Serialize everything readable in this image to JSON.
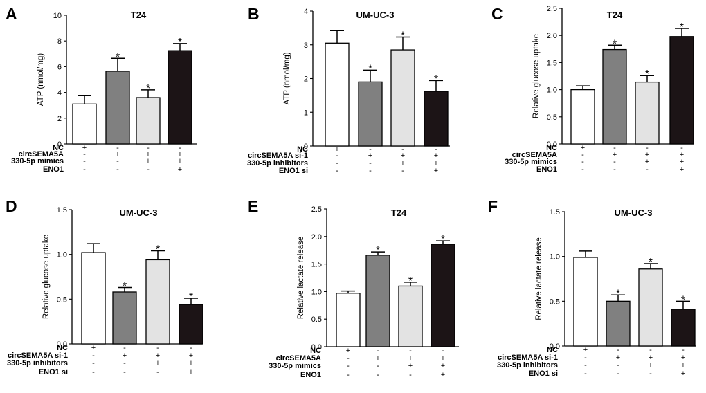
{
  "figure": {
    "panels": [
      {
        "letter": "A",
        "title": "T24",
        "ylabel": "ATP (nmol/mg)"
      },
      {
        "letter": "B",
        "title": "UM-UC-3",
        "ylabel": "ATP (nmol/mg)"
      },
      {
        "letter": "C",
        "title": "T24",
        "ylabel": "Relative glucose uptake"
      },
      {
        "letter": "D",
        "title": "UM-UC-3",
        "ylabel": "Relative glucose uptake"
      },
      {
        "letter": "E",
        "title": "T24",
        "ylabel": "Relative lactate release"
      },
      {
        "letter": "F",
        "title": "UM-UC-3",
        "ylabel": "Relative lactate release"
      }
    ]
  },
  "chart_data": [
    {
      "type": "bar",
      "panel": "A",
      "title": "T24",
      "ylabel": "ATP (nmol/mg)",
      "ylim": [
        0,
        10
      ],
      "yticks": [
        "0",
        "2",
        "4",
        "6",
        "8",
        "10"
      ],
      "values": [
        3.1,
        5.65,
        3.6,
        7.25
      ],
      "errors": [
        0.65,
        1.0,
        0.6,
        0.55
      ],
      "significant": [
        false,
        true,
        true,
        true
      ],
      "bar_colors": [
        "#ffffff",
        "#808080",
        "#e3e3e3",
        "#1c1416"
      ],
      "conditions": [
        {
          "label": "NC",
          "signs": [
            "+",
            "-",
            "-",
            "-"
          ]
        },
        {
          "label": "circSEMA5A",
          "signs": [
            "-",
            "+",
            "+",
            "+"
          ]
        },
        {
          "label": "330-5p mimics",
          "signs": [
            "-",
            "-",
            "+",
            "+"
          ]
        },
        {
          "label": "ENO1",
          "signs": [
            "-",
            "-",
            "-",
            "+"
          ]
        }
      ]
    },
    {
      "type": "bar",
      "panel": "B",
      "title": "UM-UC-3",
      "ylabel": "ATP (nmol/mg)",
      "ylim": [
        0,
        4
      ],
      "yticks": [
        "0",
        "1",
        "2",
        "3",
        "4"
      ],
      "values": [
        3.05,
        1.9,
        2.85,
        1.62
      ],
      "errors": [
        0.37,
        0.35,
        0.38,
        0.32
      ],
      "significant": [
        false,
        true,
        true,
        true
      ],
      "bar_colors": [
        "#ffffff",
        "#808080",
        "#e3e3e3",
        "#1c1416"
      ],
      "conditions": [
        {
          "label": "NC",
          "signs": [
            "+",
            "-",
            "-",
            "-"
          ]
        },
        {
          "label": "circSEMA5A si-1",
          "signs": [
            "-",
            "+",
            "+",
            "+"
          ]
        },
        {
          "label": "330-5p inhibitors",
          "signs": [
            "-",
            "-",
            "+",
            "+"
          ]
        },
        {
          "label": "ENO1 si",
          "signs": [
            "-",
            "-",
            "-",
            "+"
          ]
        }
      ]
    },
    {
      "type": "bar",
      "panel": "C",
      "title": "T24",
      "ylabel": "Relative glucose uptake",
      "ylim": [
        0,
        2.5
      ],
      "yticks": [
        "0.0",
        "0.5",
        "1.0",
        "1.5",
        "2.0",
        "2.5"
      ],
      "values": [
        1.0,
        1.74,
        1.14,
        1.98
      ],
      "errors": [
        0.07,
        0.08,
        0.12,
        0.15
      ],
      "significant": [
        false,
        true,
        true,
        true
      ],
      "bar_colors": [
        "#ffffff",
        "#808080",
        "#e3e3e3",
        "#1c1416"
      ],
      "conditions": [
        {
          "label": "NC",
          "signs": [
            "+",
            "-",
            "-",
            "-"
          ]
        },
        {
          "label": "circSEMA5A",
          "signs": [
            "-",
            "+",
            "+",
            "+"
          ]
        },
        {
          "label": "330-5p mimics",
          "signs": [
            "-",
            "-",
            "+",
            "+"
          ]
        },
        {
          "label": "ENO1",
          "signs": [
            "-",
            "-",
            "-",
            "+"
          ]
        }
      ]
    },
    {
      "type": "bar",
      "panel": "D",
      "title": "UM-UC-3",
      "ylabel": "Relative glucose uptake",
      "ylim": [
        0,
        1.5
      ],
      "yticks": [
        "0.0",
        "0.5",
        "1.0",
        "1.5"
      ],
      "values": [
        1.02,
        0.58,
        0.94,
        0.44
      ],
      "errors": [
        0.1,
        0.05,
        0.1,
        0.07
      ],
      "significant": [
        false,
        true,
        true,
        true
      ],
      "bar_colors": [
        "#ffffff",
        "#808080",
        "#e3e3e3",
        "#1c1416"
      ],
      "conditions": [
        {
          "label": "NC",
          "signs": [
            "+",
            "-",
            "-",
            "-"
          ]
        },
        {
          "label": "circSEMA5A si-1",
          "signs": [
            "-",
            "+",
            "+",
            "+"
          ]
        },
        {
          "label": "330-5p inhibitors",
          "signs": [
            "-",
            "-",
            "+",
            "+"
          ]
        },
        {
          "label": "ENO1 si",
          "signs": [
            "-",
            "-",
            "-",
            "+"
          ]
        }
      ]
    },
    {
      "type": "bar",
      "panel": "E",
      "title": "T24",
      "ylabel": "Relative lactate release",
      "ylim": [
        0,
        2.5
      ],
      "yticks": [
        "0.0",
        "0.5",
        "1.0",
        "1.5",
        "2.0",
        "2.5"
      ],
      "values": [
        0.97,
        1.66,
        1.1,
        1.86
      ],
      "errors": [
        0.04,
        0.06,
        0.07,
        0.06
      ],
      "significant": [
        false,
        true,
        true,
        true
      ],
      "bar_colors": [
        "#ffffff",
        "#808080",
        "#e3e3e3",
        "#1c1416"
      ],
      "conditions": [
        {
          "label": "NC",
          "signs": [
            "+",
            "-",
            "-",
            "-"
          ]
        },
        {
          "label": "circSEMA5A",
          "signs": [
            "-",
            "+",
            "+",
            "+"
          ]
        },
        {
          "label": "330-5p mimics",
          "signs": [
            "-",
            "-",
            "+",
            "+"
          ]
        },
        {
          "label": "ENO1",
          "signs": [
            "-",
            "-",
            "-",
            "+"
          ]
        }
      ]
    },
    {
      "type": "bar",
      "panel": "F",
      "title": "UM-UC-3",
      "ylabel": "Relative lactate release",
      "ylim": [
        0,
        1.5
      ],
      "yticks": [
        "0.0",
        "0.5",
        "1.0",
        "1.5"
      ],
      "values": [
        0.99,
        0.5,
        0.86,
        0.41
      ],
      "errors": [
        0.07,
        0.07,
        0.06,
        0.09
      ],
      "significant": [
        false,
        true,
        true,
        true
      ],
      "bar_colors": [
        "#ffffff",
        "#808080",
        "#e3e3e3",
        "#1c1416"
      ],
      "conditions": [
        {
          "label": "NC",
          "signs": [
            "+",
            "-",
            "-",
            "-"
          ]
        },
        {
          "label": "circSEMA5A si-1",
          "signs": [
            "-",
            "+",
            "+",
            "+"
          ]
        },
        {
          "label": "330-5p inhibitors",
          "signs": [
            "-",
            "-",
            "+",
            "+"
          ]
        },
        {
          "label": "ENO1 si",
          "signs": [
            "-",
            "-",
            "-",
            "+"
          ]
        }
      ]
    }
  ]
}
